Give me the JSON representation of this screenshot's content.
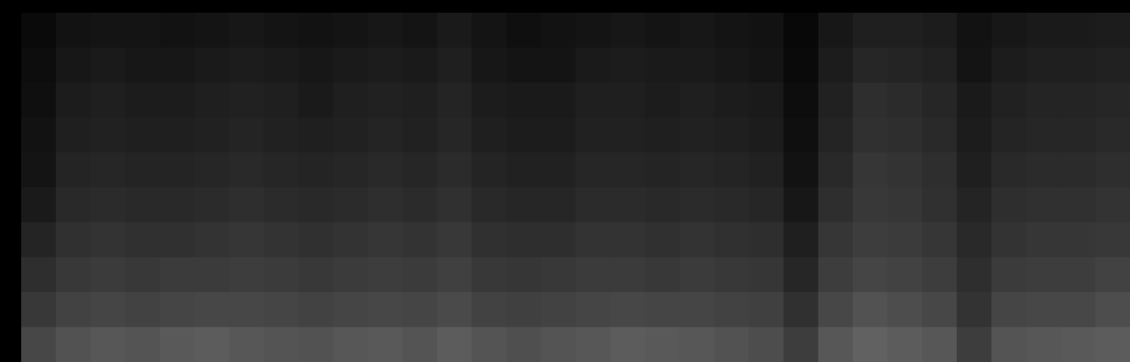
{
  "chart_data": {
    "type": "heatmap",
    "tick_labels": false,
    "grid": false,
    "xlim": [
      0,
      32
    ],
    "ylim": [
      0,
      10
    ],
    "colorbar_range": [
      0,
      100
    ],
    "cells": [
      [
        4,
        7,
        8,
        8,
        7,
        8,
        9,
        8,
        7,
        8,
        9,
        8,
        10,
        8,
        6,
        7,
        8,
        9,
        8,
        9,
        8,
        7,
        3,
        9,
        12,
        12,
        11,
        7,
        9,
        10,
        10,
        11
      ],
      [
        5,
        9,
        10,
        9,
        9,
        10,
        11,
        10,
        9,
        10,
        11,
        10,
        12,
        9,
        8,
        8,
        10,
        11,
        10,
        10,
        9,
        8,
        4,
        11,
        15,
        14,
        13,
        8,
        11,
        12,
        12,
        13
      ],
      [
        6,
        11,
        12,
        11,
        11,
        12,
        13,
        12,
        10,
        12,
        13,
        12,
        14,
        11,
        10,
        10,
        12,
        12,
        11,
        12,
        11,
        10,
        5,
        13,
        18,
        17,
        15,
        10,
        13,
        14,
        14,
        15
      ],
      [
        7,
        12,
        13,
        12,
        12,
        13,
        14,
        13,
        12,
        13,
        14,
        13,
        15,
        12,
        11,
        11,
        13,
        13,
        12,
        13,
        12,
        11,
        6,
        14,
        19,
        18,
        16,
        11,
        14,
        15,
        15,
        16
      ],
      [
        8,
        14,
        15,
        14,
        14,
        15,
        16,
        15,
        14,
        15,
        16,
        15,
        17,
        14,
        13,
        13,
        15,
        15,
        14,
        15,
        14,
        13,
        7,
        16,
        21,
        20,
        18,
        12,
        16,
        17,
        17,
        18
      ],
      [
        10,
        16,
        17,
        16,
        16,
        17,
        18,
        17,
        16,
        17,
        18,
        17,
        19,
        16,
        15,
        15,
        17,
        17,
        16,
        17,
        16,
        15,
        9,
        18,
        22,
        21,
        19,
        14,
        18,
        19,
        19,
        20
      ],
      [
        14,
        19,
        20,
        19,
        19,
        20,
        21,
        20,
        19,
        20,
        21,
        20,
        22,
        19,
        18,
        18,
        20,
        20,
        19,
        20,
        19,
        18,
        12,
        21,
        24,
        23,
        21,
        16,
        20,
        21,
        21,
        22
      ],
      [
        18,
        22,
        23,
        22,
        23,
        23,
        24,
        23,
        22,
        23,
        24,
        23,
        25,
        22,
        21,
        22,
        23,
        23,
        22,
        23,
        22,
        21,
        15,
        24,
        27,
        26,
        24,
        18,
        23,
        24,
        24,
        26
      ],
      [
        22,
        26,
        27,
        26,
        27,
        28,
        28,
        27,
        26,
        27,
        28,
        27,
        29,
        26,
        25,
        26,
        27,
        28,
        27,
        27,
        26,
        25,
        19,
        28,
        32,
        30,
        28,
        20,
        27,
        28,
        28,
        30
      ],
      [
        28,
        32,
        34,
        33,
        35,
        36,
        34,
        33,
        32,
        34,
        35,
        33,
        36,
        33,
        31,
        33,
        34,
        36,
        35,
        34,
        32,
        30,
        24,
        34,
        38,
        36,
        34,
        24,
        33,
        34,
        35,
        36
      ]
    ]
  }
}
